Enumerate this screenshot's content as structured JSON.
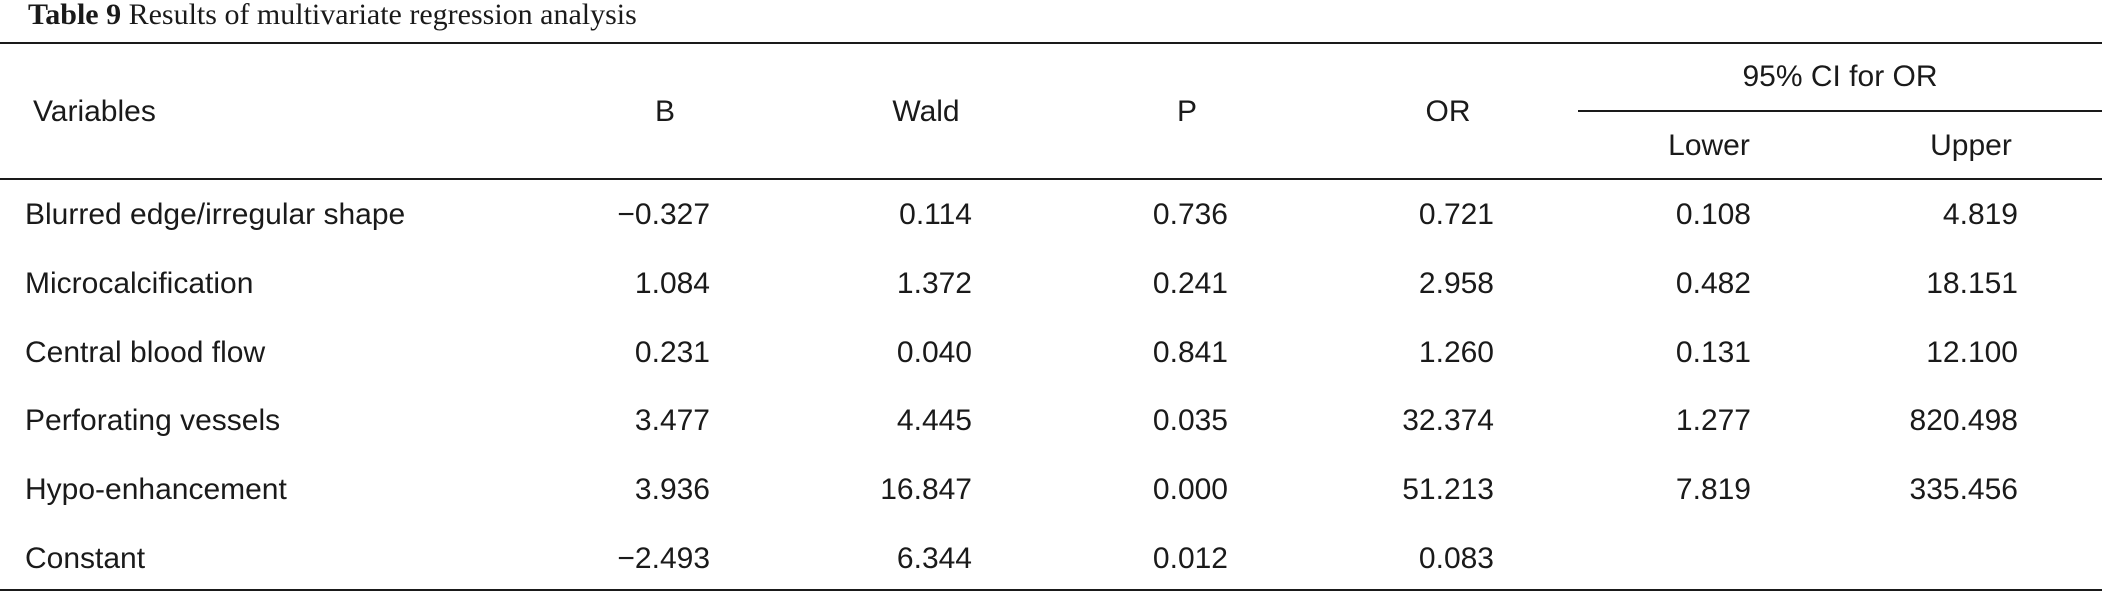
{
  "caption": {
    "label": "Table 9",
    "text": "Results of multivariate regression analysis"
  },
  "headers": {
    "variables": "Variables",
    "b": "B",
    "wald": "Wald",
    "p": "P",
    "or": "OR",
    "ci_group": "95% CI for OR",
    "lower": "Lower",
    "upper": "Upper"
  },
  "rows": [
    {
      "variable": "Blurred edge/irregular shape",
      "b": "−0.327",
      "wald": "0.114",
      "p": "0.736",
      "or": "0.721",
      "lower": "0.108",
      "upper": "4.819"
    },
    {
      "variable": "Microcalcification",
      "b": "1.084",
      "wald": "1.372",
      "p": "0.241",
      "or": "2.958",
      "lower": "0.482",
      "upper": "18.151"
    },
    {
      "variable": "Central blood flow",
      "b": "0.231",
      "wald": "0.040",
      "p": "0.841",
      "or": "1.260",
      "lower": "0.131",
      "upper": "12.100"
    },
    {
      "variable": "Perforating vessels",
      "b": "3.477",
      "wald": "4.445",
      "p": "0.035",
      "or": "32.374",
      "lower": "1.277",
      "upper": "820.498"
    },
    {
      "variable": "Hypo-enhancement",
      "b": "3.936",
      "wald": "16.847",
      "p": "0.000",
      "or": "51.213",
      "lower": "7.819",
      "upper": "335.456"
    },
    {
      "variable": "Constant",
      "b": "−2.493",
      "wald": "6.344",
      "p": "0.012",
      "or": "0.083",
      "lower": "",
      "upper": ""
    }
  ]
}
